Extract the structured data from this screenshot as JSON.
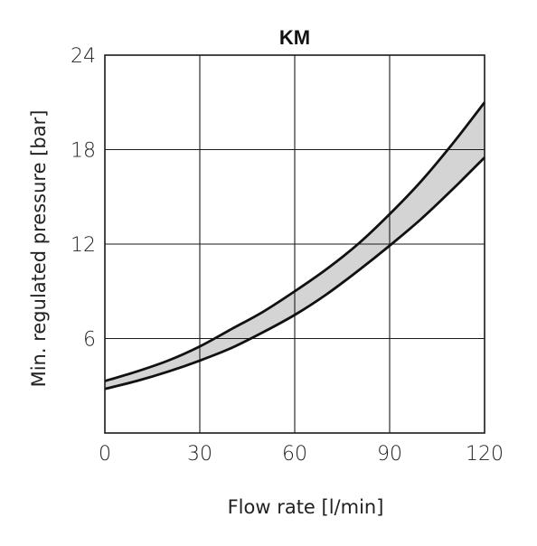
{
  "chart_data": {
    "type": "area",
    "title": "KM",
    "xlabel": "Flow rate [l/min]",
    "ylabel": "Min. regulated pressure [bar]",
    "xlim": [
      0,
      120
    ],
    "ylim": [
      0,
      24
    ],
    "xticks": [
      0,
      30,
      60,
      90,
      120
    ],
    "yticks": [
      6,
      12,
      18,
      24
    ],
    "xtick_labels": [
      "0",
      "30",
      "60",
      "90",
      "120"
    ],
    "ytick_labels": [
      "6",
      "12",
      "18",
      "24"
    ],
    "grid": true,
    "fill_color": "#d4d4d4",
    "line_color": "#111111",
    "series": [
      {
        "x": [
          0,
          10,
          20,
          30,
          40,
          50,
          60,
          70,
          80,
          90,
          100,
          110,
          120
        ],
        "values": [
          3.3,
          3.9,
          4.6,
          5.5,
          6.6,
          7.7,
          9.0,
          10.4,
          12.0,
          13.9,
          16.0,
          18.4,
          21.0
        ]
      },
      {
        "x": [
          0,
          10,
          20,
          30,
          40,
          50,
          60,
          70,
          80,
          90,
          100,
          110,
          120
        ],
        "values": [
          2.8,
          3.3,
          3.9,
          4.6,
          5.4,
          6.4,
          7.5,
          8.8,
          10.3,
          11.9,
          13.6,
          15.5,
          17.5
        ]
      }
    ]
  }
}
